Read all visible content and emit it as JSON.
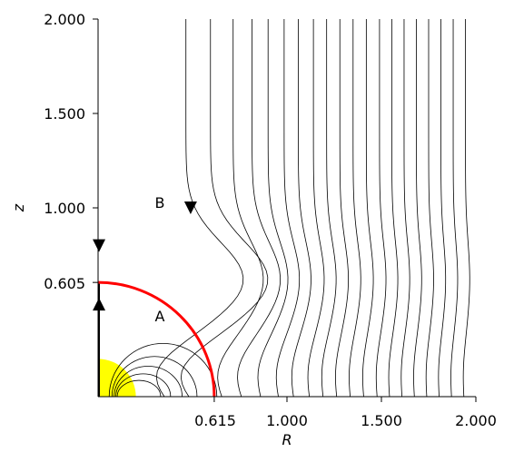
{
  "chart_data": {
    "type": "line",
    "title": "",
    "xlabel": "R",
    "ylabel": "z",
    "xlim": [
      0,
      2
    ],
    "ylim": [
      0,
      2
    ],
    "grid": false,
    "x_ticks": [
      {
        "value": 0.615,
        "label": "0.615"
      },
      {
        "value": 1.0,
        "label": "1.000"
      },
      {
        "value": 1.5,
        "label": "1.500"
      },
      {
        "value": 2.0,
        "label": "2.000"
      }
    ],
    "y_ticks": [
      {
        "value": 0.605,
        "label": "0.605"
      },
      {
        "value": 1.0,
        "label": "1.000"
      },
      {
        "value": 1.5,
        "label": "1.500"
      },
      {
        "value": 2.0,
        "label": "2.000"
      }
    ],
    "yellow_disk": {
      "radius": 0.2,
      "color": "#ffff00"
    },
    "red_boundary": {
      "r": 0.615,
      "z": 0.605,
      "color": "#ff0000"
    },
    "small_loops_radii": [
      0.075,
      0.105,
      0.14,
      0.185,
      0.245
    ],
    "field_line_x": [
      0.465,
      0.595,
      0.715,
      0.815,
      0.9,
      0.985,
      1.06,
      1.14,
      1.21,
      1.28,
      1.35,
      1.42,
      1.49,
      1.555,
      1.62,
      1.685,
      1.75,
      1.815,
      1.88,
      1.945
    ],
    "annotations": [
      {
        "text": "A",
        "x": 0.33,
        "z": 0.42
      },
      {
        "text": "B",
        "x": 0.33,
        "z": 1.02
      }
    ],
    "arrows": [
      {
        "x": 0.49,
        "z": 1.0,
        "direction": "down"
      },
      {
        "x": 0.005,
        "z": 0.8,
        "direction": "down"
      },
      {
        "x": 0.005,
        "z": 0.49,
        "direction": "up"
      }
    ]
  }
}
